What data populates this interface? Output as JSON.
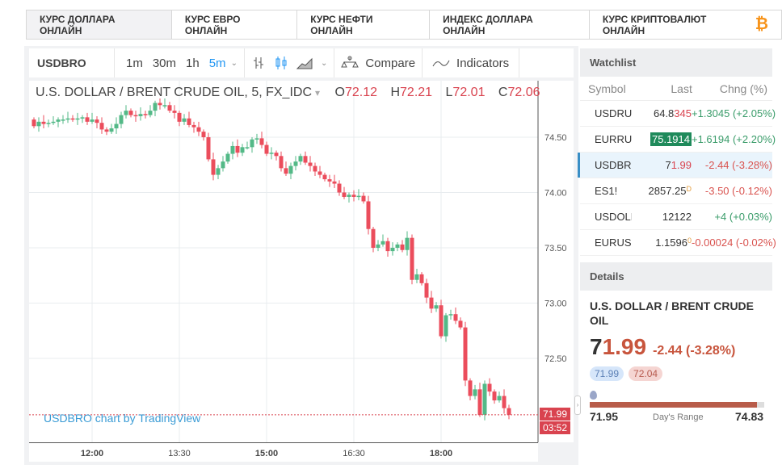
{
  "tabs": [
    "КУРС ДОЛЛАРА ОНЛАЙН",
    "КУРС ЕВРО ОНЛАЙН",
    "КУРС НЕФТИ ОНЛАЙН",
    "ИНДЕКС ДОЛЛАРА ОНЛАЙН",
    "КУРС КРИПТОВАЛЮТ ОНЛАЙН"
  ],
  "bitcoin_glyph": "₿",
  "toolbar": {
    "symbol": "USDBRO",
    "intervals": [
      "1m",
      "30m",
      "1h",
      "5m"
    ],
    "active_interval": "5m",
    "compare": "Compare",
    "indicators": "Indicators"
  },
  "legend": {
    "title": "U.S. DOLLAR / BRENT CRUDE OIL, 5, FX_IDC",
    "o_label": "O",
    "o": "72.12",
    "h_label": "H",
    "h": "72.21",
    "l_label": "L",
    "l": "72.01",
    "c_label": "C",
    "c": "72.06"
  },
  "credit": "USDBRO chart by TradingView",
  "last_price_label": "71.99",
  "countdown": "03:52",
  "colors": {
    "up": "#53b987",
    "down": "#eb4d5c",
    "accent": "#2196f3"
  },
  "chart_data": {
    "type": "candlestick",
    "ylim": [
      71.75,
      74.93
    ],
    "yticks": [
      "74.50",
      "74.00",
      "73.50",
      "73.00",
      "72.50"
    ],
    "xticks": [
      {
        "label": "12:00",
        "bar": 12
      },
      {
        "label": "13:30",
        "bar": 30
      },
      {
        "label": "15:00",
        "bar": 48
      },
      {
        "label": "16:30",
        "bar": 66
      },
      {
        "label": "18:00",
        "bar": 84
      }
    ],
    "open_first": 74.66,
    "closes": [
      74.6,
      74.64,
      74.62,
      74.63,
      74.64,
      74.66,
      74.66,
      74.67,
      74.66,
      74.67,
      74.68,
      74.64,
      74.66,
      74.63,
      74.57,
      74.55,
      74.58,
      74.62,
      74.7,
      74.74,
      74.7,
      74.69,
      74.71,
      74.7,
      74.74,
      74.81,
      74.79,
      74.79,
      74.74,
      74.72,
      74.64,
      74.67,
      74.61,
      74.59,
      74.55,
      74.5,
      74.3,
      74.16,
      74.22,
      74.28,
      74.35,
      74.42,
      74.36,
      74.41,
      74.41,
      74.48,
      74.49,
      74.43,
      74.35,
      74.36,
      74.33,
      74.22,
      74.17,
      74.24,
      74.28,
      74.33,
      74.27,
      74.24,
      74.19,
      74.16,
      74.12,
      74.1,
      74.08,
      74.0,
      73.96,
      73.98,
      73.96,
      73.97,
      73.92,
      73.67,
      73.5,
      73.53,
      73.56,
      73.47,
      73.5,
      73.53,
      73.48,
      73.59,
      73.21,
      73.26,
      73.18,
      73.05,
      72.95,
      72.98,
      72.7,
      72.89,
      72.9,
      72.84,
      72.78,
      72.3,
      72.16,
      72.22,
      71.99,
      72.27,
      72.2,
      72.12,
      72.16,
      72.05,
      71.99
    ],
    "last": 71.99
  },
  "watchlist": {
    "title": "Watchlist",
    "cols": [
      "Symbol",
      "Last",
      "Chng (%)"
    ],
    "rows": [
      {
        "sym": "USDRUB",
        "last_a": "64.8",
        "last_b": "345",
        "chg": "+1.3045 (+2.05%)",
        "dir": "up"
      },
      {
        "sym": "EURRUB",
        "last_a": "",
        "last_b": "75.1914",
        "chg": "+1.6194 (+2.20%)",
        "dir": "up",
        "hl": true
      },
      {
        "sym": "USDBRO",
        "last_a": "7",
        "last_b": "1.99",
        "chg": "-2.44 (-3.28%)",
        "dir": "dn",
        "sel": true
      },
      {
        "sym": "ES1!",
        "last_a": "2857.25",
        "last_b": "",
        "sup": "D",
        "chg": "-3.50 (-0.12%)",
        "dir": "dn"
      },
      {
        "sym": "USDOLLAR",
        "last_a": "12122",
        "last_b": "",
        "chg": "+4 (+0.03%)",
        "dir": "up"
      },
      {
        "sym": "EURUSD",
        "last_a": "1.1596",
        "last_b": "",
        "sup": "0",
        "chg": "-0.00024 (-0.02%)",
        "dir": "dn"
      }
    ]
  },
  "details": {
    "title": "Details",
    "name": "U.S. DOLLAR / BRENT CRUDE OIL",
    "price_a": "7",
    "price_b": "1.99",
    "change": "-2.44 (-3.28%)",
    "bid": "71.99",
    "ask": "72.04",
    "low": "71.95",
    "high": "74.83",
    "range_label": "Day's Range",
    "range_fill_pct": 96
  }
}
